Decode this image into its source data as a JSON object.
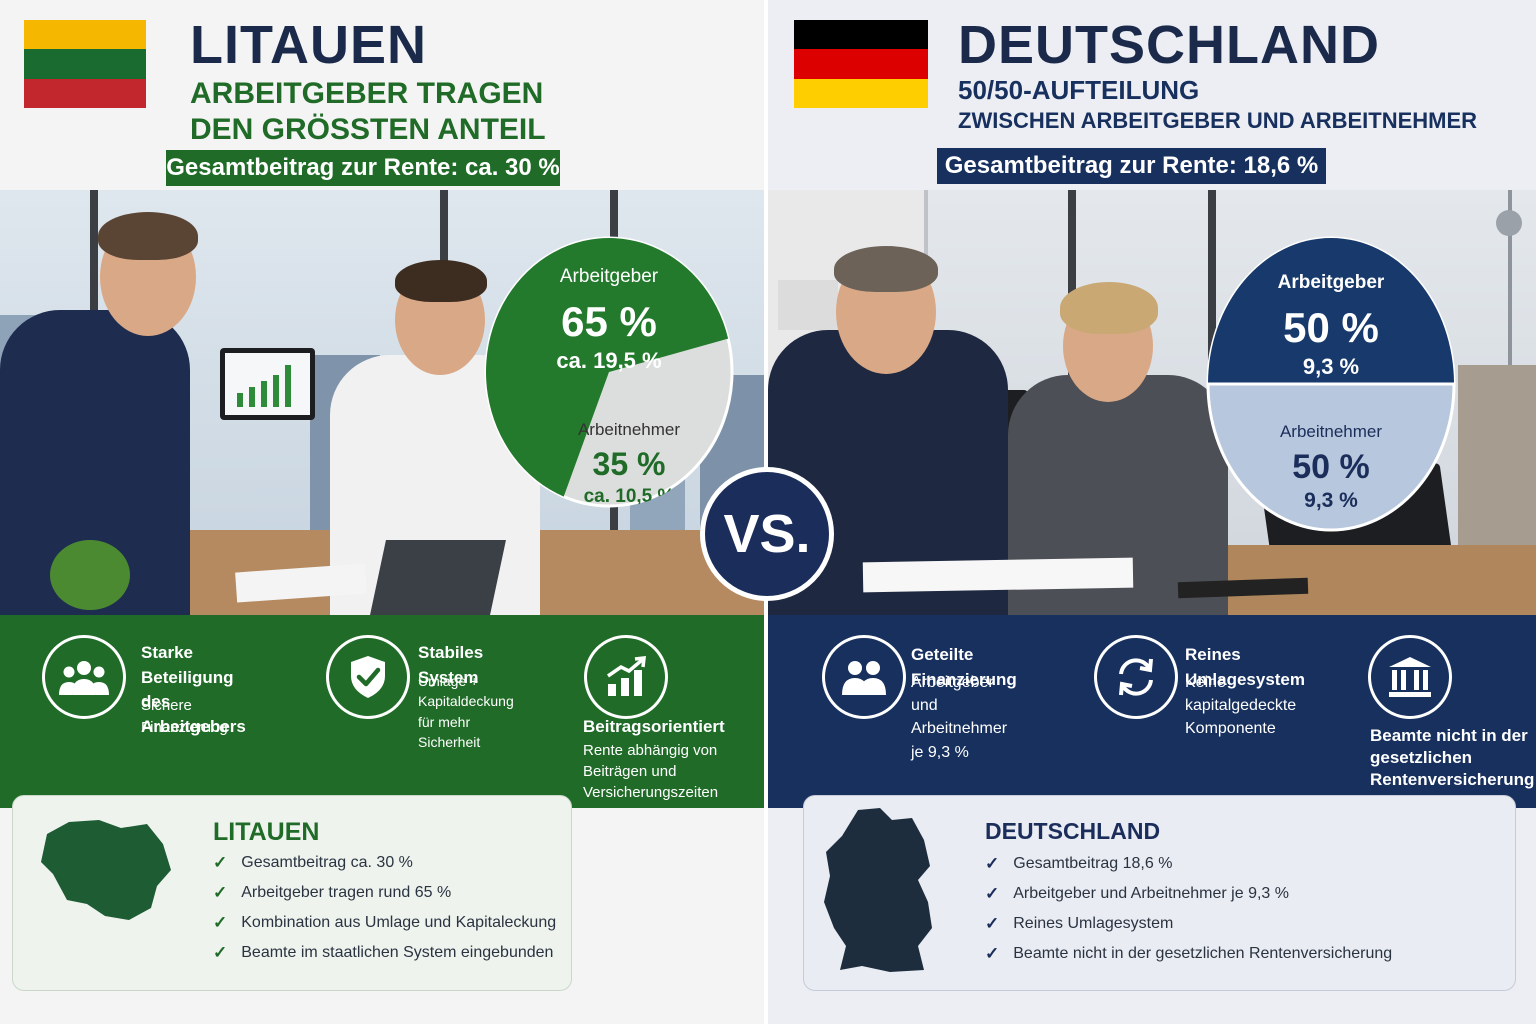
{
  "lithuania": {
    "title": "LITAUEN",
    "subtitle_line1": "ARBEITGEBER TRAGEN",
    "subtitle_line2": "DEN GRÖSSTEN ANTEIL",
    "total_label": "Gesamtbeitrag zur Rente: ca. 30 %",
    "flag_colors": [
      "#f5b700",
      "#1a6b30",
      "#c1272d"
    ],
    "accent": "#1f6b27",
    "pie": {
      "employer_label": "Arbeitgeber",
      "employer_share": "65 %",
      "employer_value": "ca. 19,5 %",
      "employee_label": "Arbeitnehmer",
      "employee_share": "35 %",
      "employee_value": "ca. 10,5 %",
      "employer_fraction": 0.65
    },
    "features": [
      {
        "icon": "people-group-icon",
        "title_line1": "Starke Beteiligung",
        "title_line2": "des Arbeitgebers",
        "text_line1": "Sichere Finanzierung"
      },
      {
        "icon": "shield-check-icon",
        "title_line1": "Stabiles System",
        "text_line1": "Umlage + Kapitaldeckung",
        "text_line2": "für mehr Sicherheit"
      },
      {
        "icon": "growth-chart-icon",
        "title_line1": "Beitragsorientiert",
        "text_line1": "Rente abhängig von",
        "text_line2": "Beiträgen und",
        "text_line3": "Versicherungszeiten"
      }
    ],
    "summary": {
      "title": "LITAUEN",
      "items": [
        "Gesamtbeitrag ca. 30 %",
        "Arbeitgeber tragen rund 65 %",
        "Kombination aus Umlage und Kapitaleckung",
        "Beamte im staatlichen System eingebunden"
      ]
    }
  },
  "vs_label": "VS.",
  "germany": {
    "title": "DEUTSCHLAND",
    "subtitle_line1": "50/50-AUFTEILUNG",
    "subtitle_line2": "ZWISCHEN ARBEITGEBER UND ARBEITNEHMER",
    "total_label": "Gesamtbeitrag zur Rente: 18,6 %",
    "flag_colors": [
      "#000000",
      "#dd0000",
      "#ffce00"
    ],
    "accent": "#17305e",
    "pie": {
      "employer_label": "Arbeitgeber",
      "employer_share": "50 %",
      "employer_value": "9,3 %",
      "employee_label": "Arbeitnehmer",
      "employee_share": "50 %",
      "employee_value": "9,3 %",
      "employer_fraction": 0.5
    },
    "features": [
      {
        "icon": "people-pair-icon",
        "title_line1": "Geteilte Finanzierung",
        "text_line1": "Arbeitgeber und",
        "text_line2": "Arbeitnehmer je 9,3 %"
      },
      {
        "icon": "cycle-arrows-icon",
        "title_line1": "Reines Umlagesystem",
        "text_line1": "Keine kapitalgedeckte",
        "text_line2": "Komponente"
      },
      {
        "icon": "government-building-icon",
        "title_line1": "Beamte nicht in der",
        "title_line2": "gesetzlichen",
        "title_line3": "Rentenversicherung"
      }
    ],
    "summary": {
      "title": "DEUTSCHLAND",
      "items": [
        "Gesamtbeitrag 18,6 %",
        "Arbeitgeber und Arbeitnehmer je 9,3 %",
        "Reines Umlagesystem",
        "Beamte nicht in der gesetzlichen Rentenversicherung"
      ]
    }
  }
}
